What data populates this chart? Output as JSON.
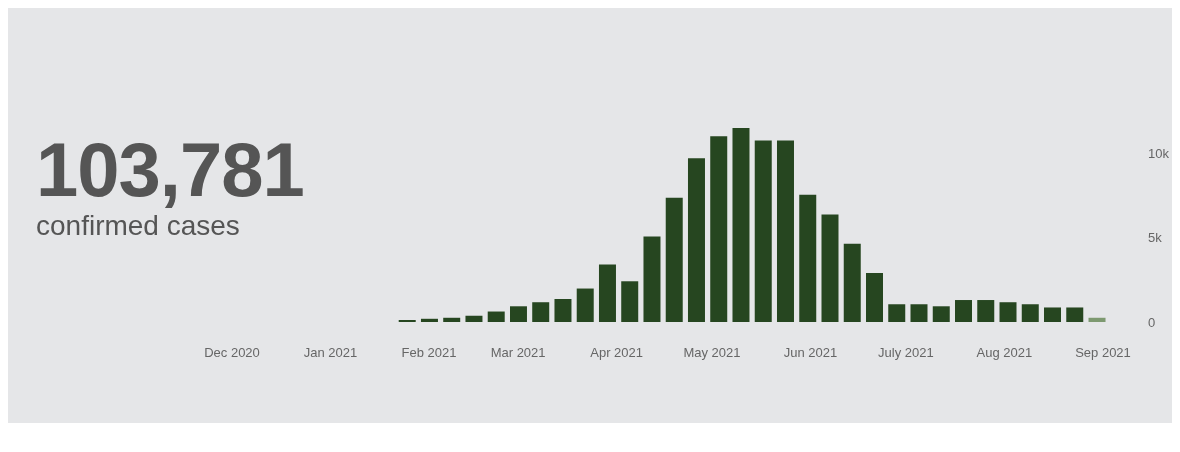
{
  "chart_data": {
    "type": "bar",
    "annotations": [
      "103,781",
      "confirmed cases"
    ],
    "x": [
      "2021-01-25",
      "2021-02-01",
      "2021-02-08",
      "2021-02-15",
      "2021-02-22",
      "2021-03-01",
      "2021-03-08",
      "2021-03-15",
      "2021-03-22",
      "2021-03-29",
      "2021-04-05",
      "2021-04-12",
      "2021-04-19",
      "2021-04-26",
      "2021-05-03",
      "2021-05-10",
      "2021-05-17",
      "2021-05-24",
      "2021-05-31",
      "2021-06-07",
      "2021-06-14",
      "2021-06-21",
      "2021-06-28",
      "2021-07-05",
      "2021-07-12",
      "2021-07-19",
      "2021-07-26",
      "2021-08-02",
      "2021-08-09",
      "2021-08-16",
      "2021-08-23",
      "2021-08-30"
    ],
    "values": [
      120,
      190,
      250,
      370,
      620,
      930,
      1170,
      1360,
      1980,
      3400,
      2410,
      5060,
      7350,
      9690,
      10990,
      11480,
      10740,
      10740,
      7530,
      6360,
      4630,
      2900,
      1050,
      1050,
      930,
      1300,
      1300,
      1170,
      1050,
      860,
      860,
      250
    ],
    "colors": [
      "#264620",
      "#264620",
      "#264620",
      "#264620",
      "#264620",
      "#264620",
      "#264620",
      "#264620",
      "#264620",
      "#264620",
      "#264620",
      "#264620",
      "#264620",
      "#264620",
      "#264620",
      "#264620",
      "#264620",
      "#264620",
      "#264620",
      "#264620",
      "#264620",
      "#264620",
      "#264620",
      "#264620",
      "#264620",
      "#264620",
      "#264620",
      "#264620",
      "#264620",
      "#264620",
      "#264620",
      "#7d9970"
    ],
    "xticks": [
      {
        "value": "2020-12-01",
        "label": "Dec 2020"
      },
      {
        "value": "2021-01-01",
        "label": "Jan 2021"
      },
      {
        "value": "2021-02-01",
        "label": "Feb 2021"
      },
      {
        "value": "2021-03-01",
        "label": "Mar 2021"
      },
      {
        "value": "2021-04-01",
        "label": "Apr 2021"
      },
      {
        "value": "2021-05-01",
        "label": "May 2021"
      },
      {
        "value": "2021-06-01",
        "label": "Jun 2021"
      },
      {
        "value": "2021-07-01",
        "label": "July 2021"
      },
      {
        "value": "2021-08-01",
        "label": "Aug 2021"
      },
      {
        "value": "2021-09-01",
        "label": "Sep 2021"
      }
    ],
    "xlim": [
      "2020-12-01",
      "2021-09-01"
    ],
    "ylim": [
      0,
      11480
    ],
    "yticks": [
      0,
      {
        "value": 5000,
        "label": "5k"
      },
      {
        "value": 10000,
        "label": "10k"
      }
    ],
    "grid": false,
    "legend": false
  }
}
